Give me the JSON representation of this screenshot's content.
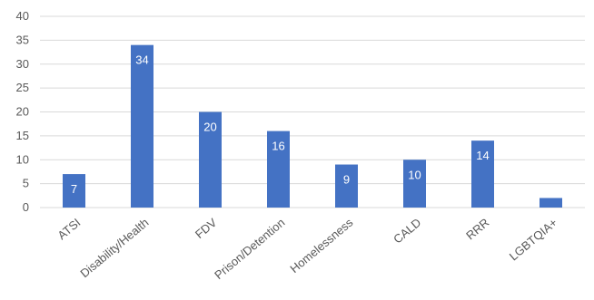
{
  "chart_data": {
    "type": "bar",
    "categories": [
      "ATSI",
      "Disability/Health",
      "FDV",
      "Prison/Detention",
      "Homelessness",
      "CALD",
      "RRR",
      "LGBTQIA+"
    ],
    "values": [
      7,
      34,
      20,
      16,
      9,
      10,
      14,
      2
    ],
    "data_labels": [
      "7",
      "34",
      "20",
      "16",
      "9",
      "10",
      "14",
      ""
    ],
    "yticks": [
      "0",
      "5",
      "10",
      "15",
      "20",
      "25",
      "30",
      "35",
      "40"
    ],
    "ylim": [
      0,
      40
    ],
    "grid": true,
    "legend": "none",
    "bar_color": "#4472C4"
  }
}
